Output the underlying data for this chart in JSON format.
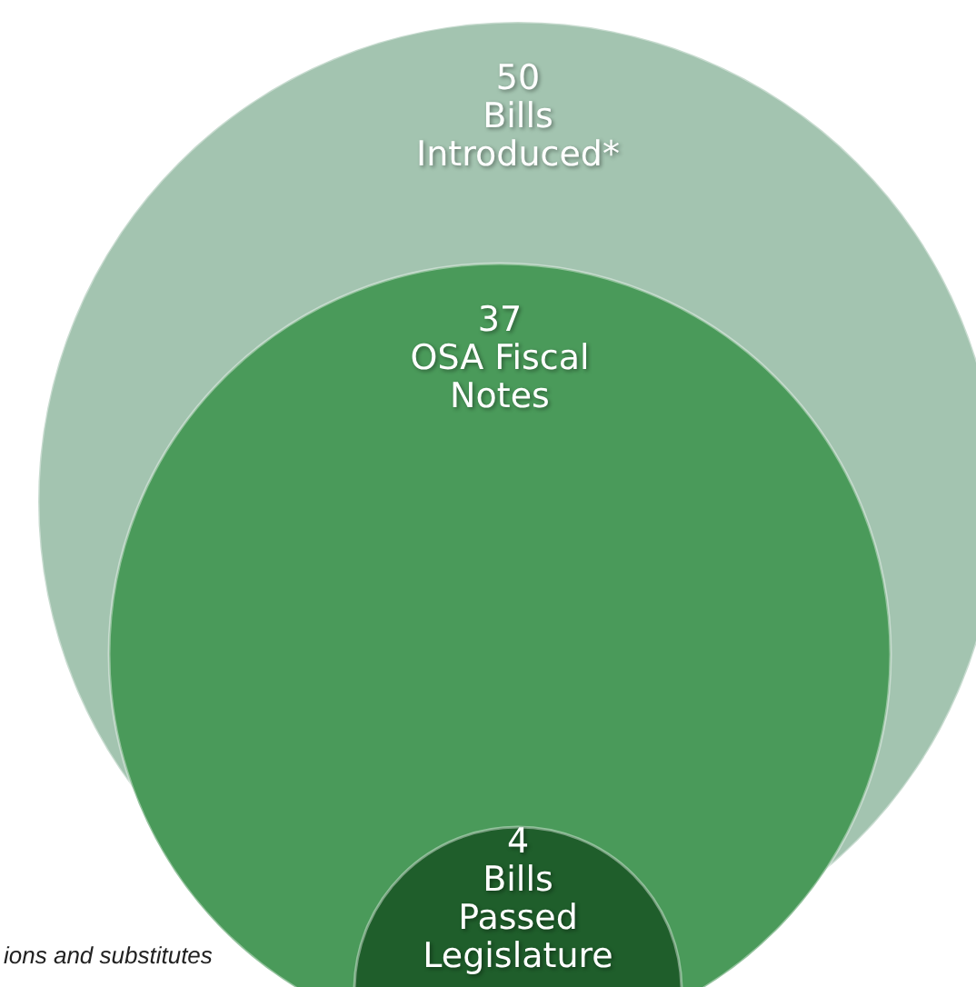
{
  "chart_data": {
    "type": "other",
    "categories": [
      "Bills Introduced*",
      "OSA Fiscal Notes",
      "Bills Passed Legislature"
    ],
    "values": [
      50,
      37,
      4
    ],
    "colors": [
      "#a3c4b0",
      "#4a9a5a",
      "#1f5e2b"
    ],
    "data_labels": true,
    "annotations": [
      "ions and substitutes"
    ]
  }
}
